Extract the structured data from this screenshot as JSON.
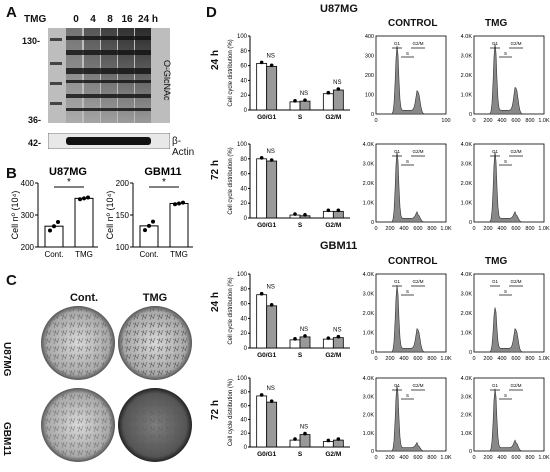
{
  "panels": {
    "A": "A",
    "B": "B",
    "C": "C",
    "D": "D"
  },
  "panelA": {
    "treatment_label": "TMG",
    "timepoints": [
      "0",
      "4",
      "8",
      "16",
      "24 h"
    ],
    "mw_markers": [
      "130-",
      "36-",
      "42-"
    ],
    "blot_label": "O-GlcNAc",
    "loading_label": "β-Actin"
  },
  "panelB": {
    "charts": [
      {
        "title": "U87MG",
        "ylabel": "Cell nº (10⁴)",
        "yticks": [
          "200",
          "300",
          "400"
        ],
        "categories": [
          "Cont.",
          "TMG"
        ],
        "sig": "*"
      },
      {
        "title": "GBM11",
        "ylabel": "Cell nº (10⁴)",
        "yticks": [
          "100",
          "150",
          "200"
        ],
        "categories": [
          "Cont.",
          "TMG"
        ],
        "sig": "*"
      }
    ]
  },
  "panelC": {
    "cols": [
      "Cont.",
      "TMG"
    ],
    "rows": [
      "U87MG",
      "GBM11"
    ]
  },
  "panelD": {
    "sections": [
      {
        "title": "U87MG",
        "col_control": "CONTROL",
        "col_tmg": "TMG",
        "rows": [
          {
            "time": "24 h",
            "sig": [
              "NS",
              "NS",
              "NS"
            ]
          },
          {
            "time": "72 h",
            "sig": [
              "NS",
              "",
              ""
            ]
          }
        ]
      },
      {
        "title": "GBM11",
        "col_control": "CONTROL",
        "col_tmg": "TMG",
        "rows": [
          {
            "time": "24 h",
            "sig": [
              "NS",
              "NS",
              "NS"
            ]
          },
          {
            "time": "72 h",
            "sig": [
              "NS",
              "NS",
              ""
            ]
          }
        ]
      }
    ],
    "bar_ylabel": "Cell cycle distribution (%)",
    "bar_yticks": [
      "0",
      "20",
      "40",
      "60",
      "80",
      "100"
    ],
    "bar_categories": [
      "G0/G1",
      "S",
      "G2/M"
    ],
    "hist_yticks_left": [
      "0",
      "100",
      "200",
      "300",
      "400"
    ],
    "hist_yticks_right": [
      "0",
      "1.0K",
      "2.0K",
      "3.0K",
      "4.0K"
    ],
    "hist_xticks": [
      "0",
      "200",
      "400",
      "600",
      "800",
      "1.0K"
    ],
    "hist_xticks_first": [
      "0",
      "100"
    ],
    "gate_labels": {
      "g1": "G1",
      "g2m": "G2/M",
      "s": "S"
    }
  },
  "chart_data": [
    {
      "type": "bar",
      "title": "U87MG",
      "categories": [
        "Cont.",
        "TMG"
      ],
      "values": [
        265,
        352
      ],
      "ylim": [
        200,
        400
      ],
      "ylabel": "Cell nº (10⁴)"
    },
    {
      "type": "bar",
      "title": "GBM11",
      "categories": [
        "Cont.",
        "TMG"
      ],
      "values": [
        133,
        168
      ],
      "ylim": [
        100,
        200
      ],
      "ylabel": "Cell nº (10⁴)"
    },
    {
      "type": "bar",
      "title": "U87MG 24 h",
      "categories": [
        "G0/G1",
        "S",
        "G2/M"
      ],
      "series": [
        {
          "name": "CONTROL",
          "values": [
            63,
            11,
            22
          ]
        },
        {
          "name": "TMG",
          "values": [
            59,
            12,
            27
          ]
        }
      ],
      "ylim": [
        0,
        100
      ]
    },
    {
      "type": "bar",
      "title": "U87MG 72 h",
      "categories": [
        "G0/G1",
        "S",
        "G2/M"
      ],
      "series": [
        {
          "name": "CONTROL",
          "values": [
            80,
            4,
            9
          ]
        },
        {
          "name": "TMG",
          "values": [
            77,
            3,
            9
          ]
        }
      ],
      "ylim": [
        0,
        100
      ]
    },
    {
      "type": "bar",
      "title": "GBM11 24 h",
      "categories": [
        "G0/G1",
        "S",
        "G2/M"
      ],
      "series": [
        {
          "name": "CONTROL",
          "values": [
            72,
            11,
            12
          ]
        },
        {
          "name": "TMG",
          "values": [
            57,
            15,
            14
          ]
        }
      ],
      "ylim": [
        0,
        100
      ]
    },
    {
      "type": "bar",
      "title": "GBM11 72 h",
      "categories": [
        "G0/G1",
        "S",
        "G2/M"
      ],
      "series": [
        {
          "name": "CONTROL",
          "values": [
            74,
            10,
            8
          ]
        },
        {
          "name": "TMG",
          "values": [
            65,
            18,
            10
          ]
        }
      ],
      "ylim": [
        0,
        100
      ]
    }
  ]
}
